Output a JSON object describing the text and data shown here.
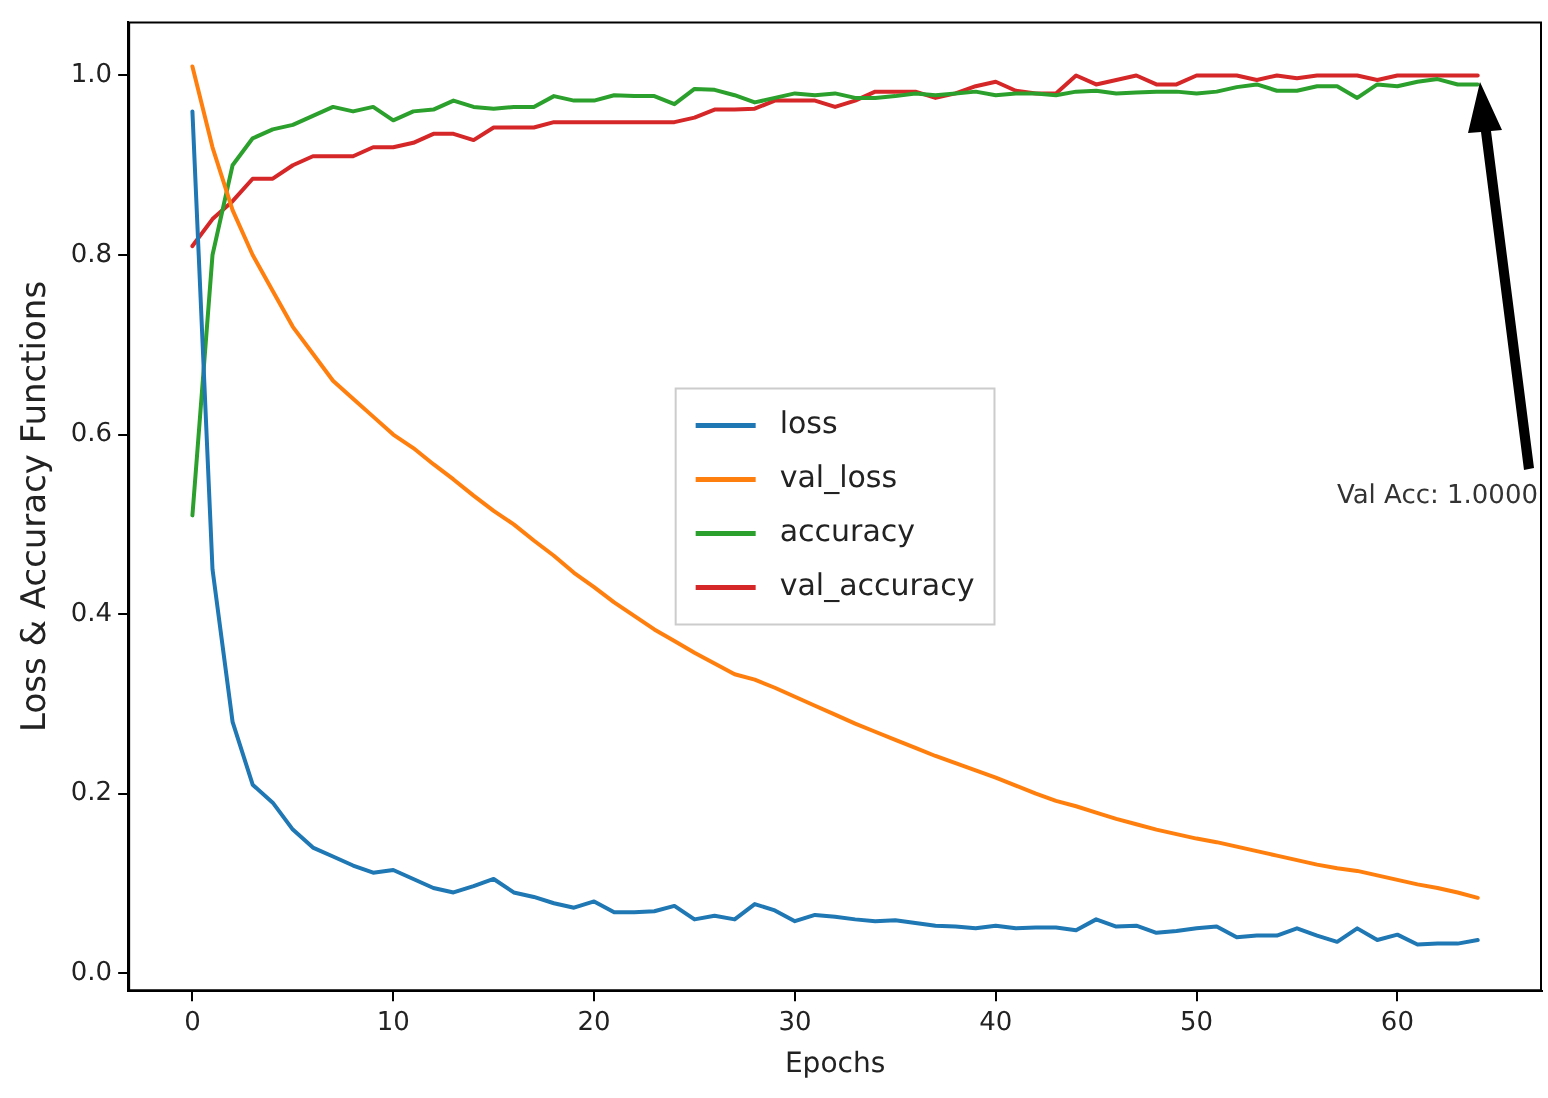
{
  "chart_data": {
    "type": "line",
    "xlabel": "Epochs",
    "ylabel": "Loss & Accuracy Functions",
    "x": [
      0,
      1,
      2,
      3,
      4,
      5,
      6,
      7,
      8,
      9,
      10,
      11,
      12,
      13,
      14,
      15,
      16,
      17,
      18,
      19,
      20,
      21,
      22,
      23,
      24,
      25,
      26,
      27,
      28,
      29,
      30,
      31,
      32,
      33,
      34,
      35,
      36,
      37,
      38,
      39,
      40,
      41,
      42,
      43,
      44,
      45,
      46,
      47,
      48,
      49,
      50,
      51,
      52,
      53,
      54,
      55,
      56,
      57,
      58,
      59,
      60,
      61,
      62,
      63,
      64
    ],
    "series": [
      {
        "name": "loss",
        "color": "#1f77b4",
        "values": [
          0.96,
          0.45,
          0.28,
          0.21,
          0.19,
          0.16,
          0.14,
          0.13,
          0.12,
          0.112,
          0.115,
          0.105,
          0.095,
          0.09,
          0.097,
          0.105,
          0.09,
          0.085,
          0.078,
          0.073,
          0.08,
          0.068,
          0.068,
          0.069,
          0.075,
          0.06,
          0.064,
          0.06,
          0.077,
          0.07,
          0.058,
          0.065,
          0.063,
          0.06,
          0.058,
          0.059,
          0.056,
          0.053,
          0.052,
          0.05,
          0.053,
          0.05,
          0.051,
          0.051,
          0.048,
          0.06,
          0.052,
          0.053,
          0.045,
          0.047,
          0.05,
          0.052,
          0.04,
          0.042,
          0.042,
          0.05,
          0.042,
          0.035,
          0.05,
          0.037,
          0.043,
          0.032,
          0.033,
          0.033,
          0.037
        ]
      },
      {
        "name": "val_loss",
        "color": "#ff7f0e",
        "values": [
          1.01,
          0.92,
          0.85,
          0.8,
          0.76,
          0.72,
          0.69,
          0.66,
          0.64,
          0.62,
          0.6,
          0.585,
          0.567,
          0.55,
          0.532,
          0.515,
          0.5,
          0.482,
          0.465,
          0.446,
          0.43,
          0.413,
          0.398,
          0.383,
          0.37,
          0.357,
          0.345,
          0.333,
          0.327,
          0.318,
          0.308,
          0.298,
          0.288,
          0.278,
          0.269,
          0.26,
          0.251,
          0.242,
          0.234,
          0.226,
          0.218,
          0.209,
          0.2,
          0.192,
          0.186,
          0.179,
          0.172,
          0.166,
          0.16,
          0.155,
          0.15,
          0.146,
          0.141,
          0.136,
          0.131,
          0.126,
          0.121,
          0.117,
          0.114,
          0.109,
          0.104,
          0.099,
          0.095,
          0.09,
          0.084
        ]
      },
      {
        "name": "accuracy",
        "color": "#2ca02c",
        "values": [
          0.51,
          0.8,
          0.9,
          0.93,
          0.94,
          0.945,
          0.955,
          0.965,
          0.96,
          0.965,
          0.95,
          0.96,
          0.962,
          0.972,
          0.965,
          0.963,
          0.965,
          0.965,
          0.977,
          0.972,
          0.972,
          0.978,
          0.977,
          0.977,
          0.968,
          0.985,
          0.984,
          0.978,
          0.97,
          0.975,
          0.98,
          0.978,
          0.98,
          0.975,
          0.975,
          0.977,
          0.98,
          0.978,
          0.98,
          0.982,
          0.978,
          0.98,
          0.98,
          0.978,
          0.982,
          0.983,
          0.98,
          0.981,
          0.982,
          0.982,
          0.98,
          0.982,
          0.987,
          0.99,
          0.983,
          0.983,
          0.988,
          0.988,
          0.975,
          0.99,
          0.988,
          0.993,
          0.996,
          0.99,
          0.99
        ]
      },
      {
        "name": "val_accuracy",
        "color": "#d62728",
        "values": [
          0.81,
          0.84,
          0.86,
          0.885,
          0.885,
          0.9,
          0.91,
          0.91,
          0.91,
          0.92,
          0.92,
          0.925,
          0.935,
          0.935,
          0.928,
          0.942,
          0.942,
          0.942,
          0.948,
          0.948,
          0.948,
          0.948,
          0.948,
          0.948,
          0.948,
          0.953,
          0.962,
          0.962,
          0.963,
          0.972,
          0.972,
          0.972,
          0.965,
          0.972,
          0.982,
          0.982,
          0.982,
          0.975,
          0.98,
          0.988,
          0.993,
          0.983,
          0.98,
          0.98,
          1.0,
          0.99,
          0.995,
          1.0,
          0.99,
          0.99,
          1.0,
          1.0,
          1.0,
          0.995,
          1.0,
          0.997,
          1.0,
          1.0,
          1.0,
          0.995,
          1.0,
          1.0,
          1.0,
          1.0,
          1.0
        ]
      }
    ],
    "xlim": [
      -3.2,
      67.2
    ],
    "xticks": [
      0,
      10,
      20,
      30,
      40,
      50,
      60
    ],
    "ylim": [
      -0.02,
      1.06
    ],
    "yticks": [
      {
        "value": 0,
        "label": "0.0"
      },
      {
        "value": 0.2,
        "label": "0.2"
      },
      {
        "value": 0.4,
        "label": "0.4"
      },
      {
        "value": 0.6,
        "label": "0.6"
      },
      {
        "value": 0.8,
        "label": "0.8"
      },
      {
        "value": 1,
        "label": "1.0"
      }
    ],
    "annotations": [
      "Val Acc: 1.0000"
    ],
    "legend": "center",
    "grid": false,
    "marker": "none",
    "line_style": "solid"
  }
}
